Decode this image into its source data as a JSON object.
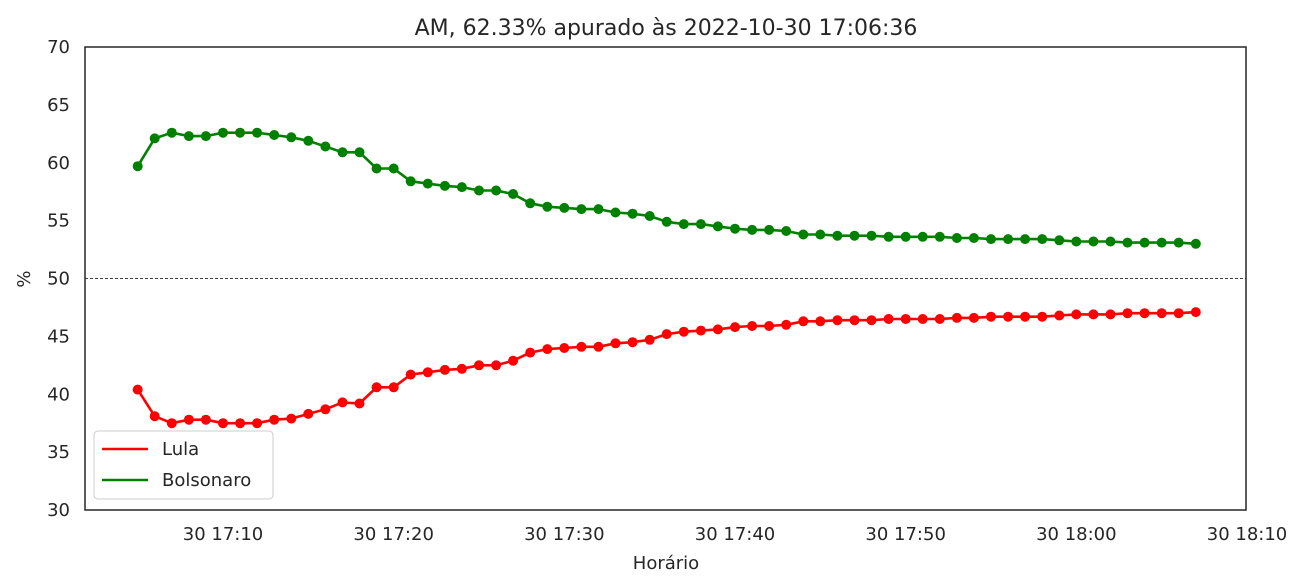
{
  "chart_data": {
    "type": "line",
    "title": "AM, 62.33% apurado às 2022-10-30 17:06:36",
    "xlabel": "Horário",
    "ylabel": "%",
    "ylim": [
      30,
      70
    ],
    "yticks": [
      30,
      35,
      40,
      45,
      50,
      55,
      60,
      65,
      70
    ],
    "xticks": [
      "30 17:10",
      "30 17:20",
      "30 17:30",
      "30 17:40",
      "30 17:50",
      "30 18:00",
      "30 18:10"
    ],
    "reference_line": 50,
    "legend_position": "lower-left",
    "grid": false,
    "x": [
      "17:05",
      "17:06",
      "17:07",
      "17:08",
      "17:09",
      "17:10",
      "17:11",
      "17:12",
      "17:13",
      "17:14",
      "17:15",
      "17:16",
      "17:17",
      "17:18",
      "17:19",
      "17:20",
      "17:21",
      "17:22",
      "17:23",
      "17:24",
      "17:25",
      "17:26",
      "17:27",
      "17:28",
      "17:29",
      "17:30",
      "17:31",
      "17:32",
      "17:33",
      "17:34",
      "17:35",
      "17:36",
      "17:37",
      "17:38",
      "17:39",
      "17:40",
      "17:41",
      "17:42",
      "17:43",
      "17:44",
      "17:45",
      "17:46",
      "17:47",
      "17:48",
      "17:49",
      "17:50",
      "17:51",
      "17:52",
      "17:53",
      "17:54",
      "17:55",
      "17:56",
      "17:57",
      "17:58",
      "17:59",
      "18:00",
      "18:01",
      "18:02",
      "18:03",
      "18:04",
      "18:05",
      "18:06",
      "18:07"
    ],
    "series": [
      {
        "name": "Lula",
        "color": "#ff0000",
        "values": [
          40.4,
          38.1,
          37.5,
          37.8,
          37.8,
          37.5,
          37.5,
          37.5,
          37.8,
          37.9,
          38.3,
          38.7,
          39.3,
          39.2,
          40.6,
          40.6,
          41.7,
          41.9,
          42.1,
          42.2,
          42.5,
          42.5,
          42.9,
          43.6,
          43.9,
          44.0,
          44.1,
          44.1,
          44.4,
          44.5,
          44.7,
          45.2,
          45.4,
          45.5,
          45.6,
          45.8,
          45.9,
          45.9,
          46.0,
          46.3,
          46.3,
          46.4,
          46.4,
          46.4,
          46.5,
          46.5,
          46.5,
          46.5,
          46.6,
          46.6,
          46.7,
          46.7,
          46.7,
          46.7,
          46.8,
          46.9,
          46.9,
          46.9,
          47.0,
          47.0,
          47.0,
          47.0,
          47.1
        ]
      },
      {
        "name": "Bolsonaro",
        "color": "#008000",
        "values": [
          59.7,
          62.1,
          62.6,
          62.3,
          62.3,
          62.6,
          62.6,
          62.6,
          62.4,
          62.2,
          61.9,
          61.4,
          60.9,
          60.9,
          59.5,
          59.5,
          58.4,
          58.2,
          58.0,
          57.9,
          57.6,
          57.6,
          57.3,
          56.5,
          56.2,
          56.1,
          56.0,
          56.0,
          55.7,
          55.6,
          55.4,
          54.9,
          54.7,
          54.7,
          54.5,
          54.3,
          54.2,
          54.2,
          54.1,
          53.8,
          53.8,
          53.7,
          53.7,
          53.7,
          53.6,
          53.6,
          53.6,
          53.6,
          53.5,
          53.5,
          53.4,
          53.4,
          53.4,
          53.4,
          53.3,
          53.2,
          53.2,
          53.2,
          53.1,
          53.1,
          53.1,
          53.1,
          53.0
        ]
      }
    ]
  }
}
